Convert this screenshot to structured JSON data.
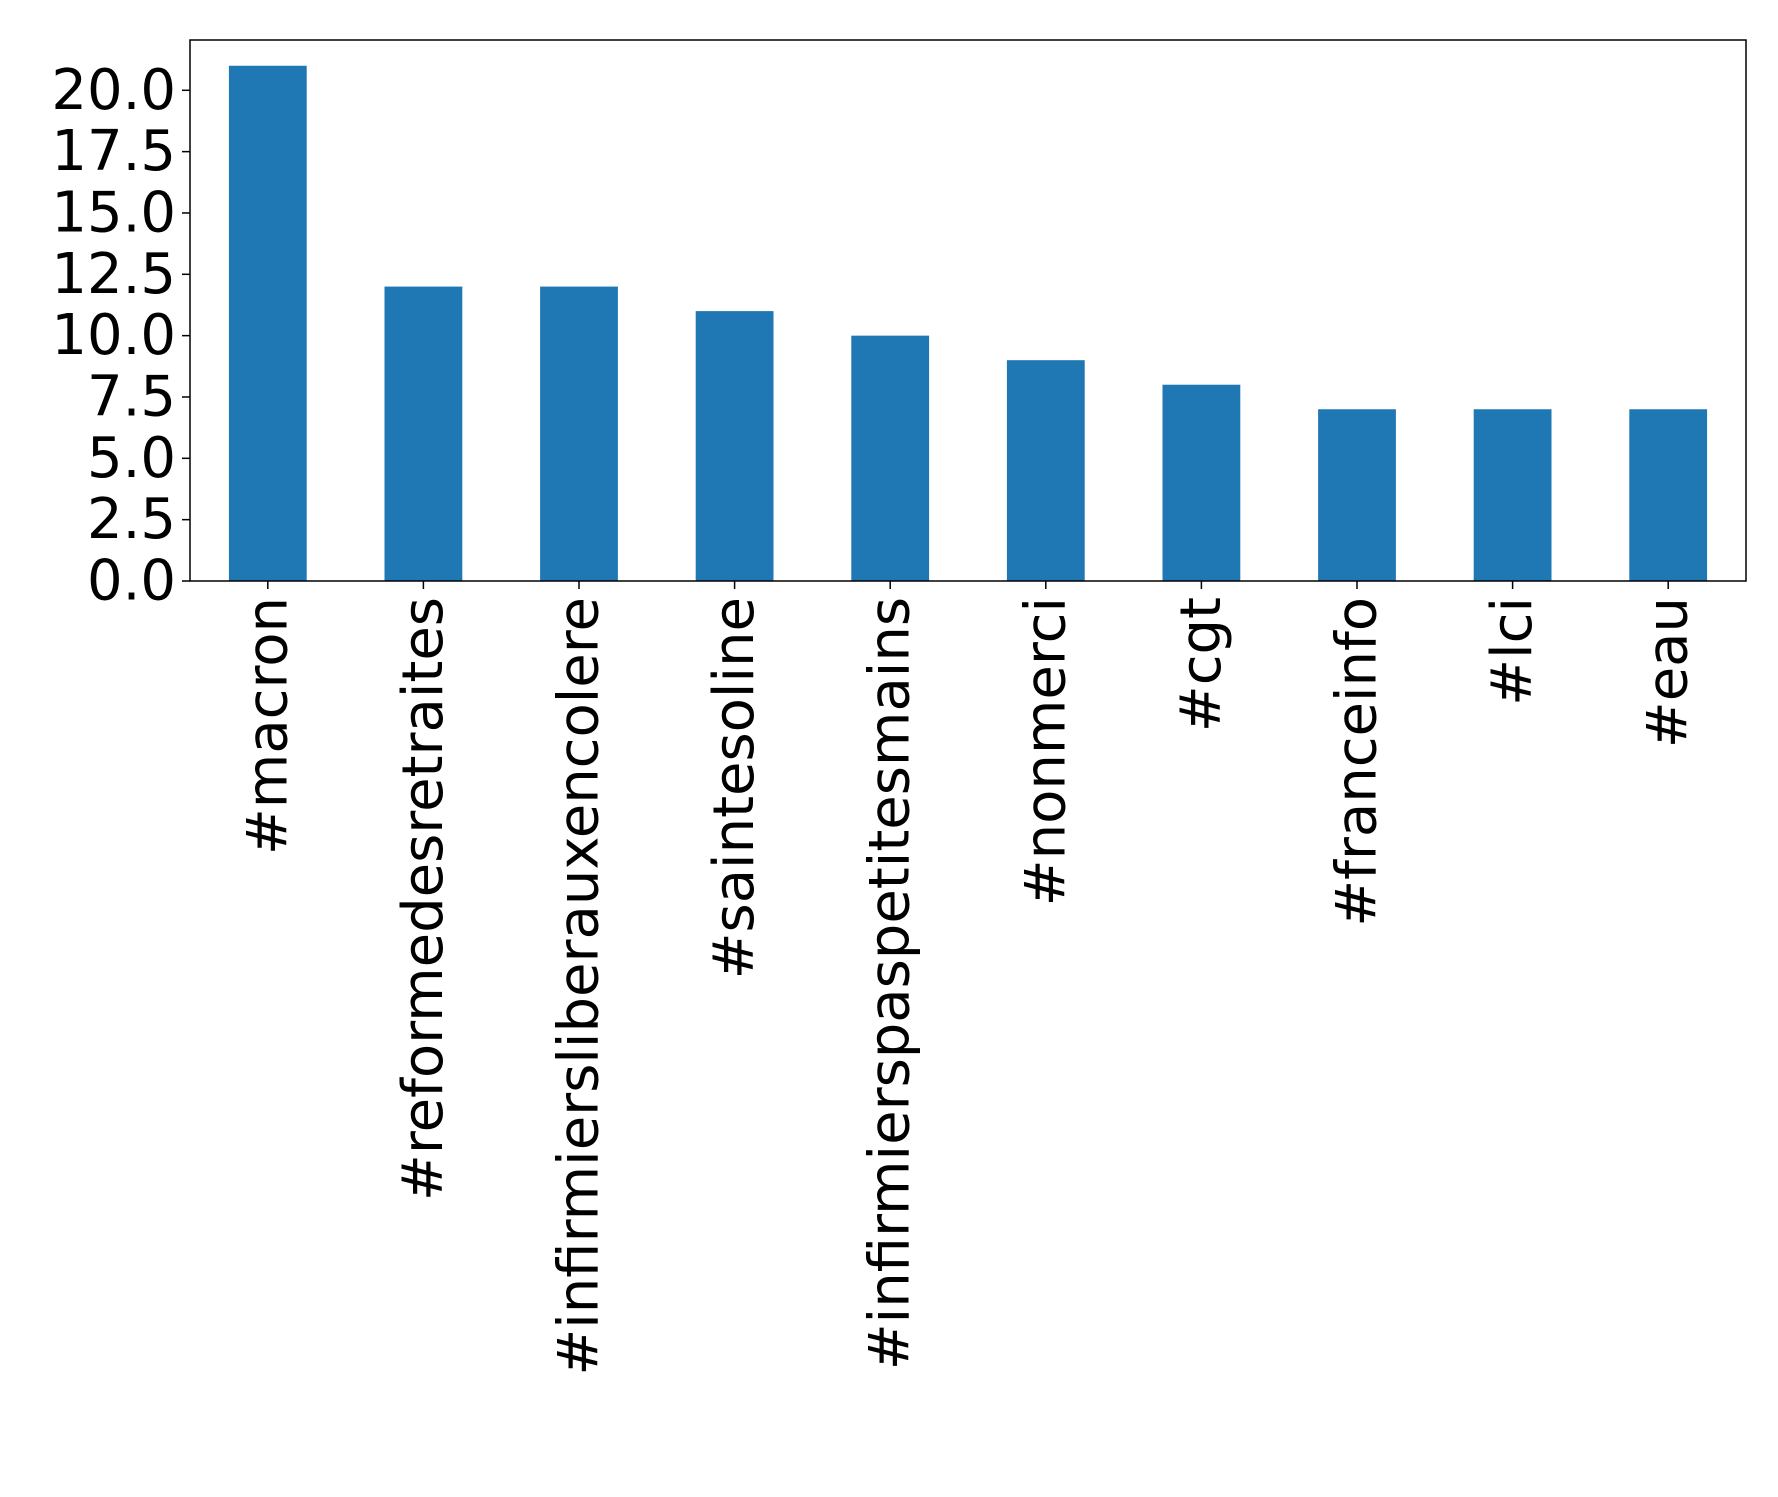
{
  "chart_data": {
    "type": "bar",
    "categories": [
      "#macron",
      "#reformedesretraites",
      "#infirmiersliberauxencolere",
      "#saintesoline",
      "#infirmierspaspetitesmains",
      "#nonmerci",
      "#cgt",
      "#franceinfo",
      "#lci",
      "#eau"
    ],
    "values": [
      21,
      12,
      12,
      11,
      10,
      9,
      8,
      7,
      7,
      7
    ],
    "title": "",
    "xlabel": "",
    "ylabel": "",
    "ylim": [
      0,
      22.05
    ],
    "yticks": [
      "0.0",
      "2.5",
      "5.0",
      "7.5",
      "10.0",
      "12.5",
      "15.0",
      "17.5",
      "20.0"
    ],
    "bar_color": "#1f77b4",
    "grid": false,
    "legend": "none"
  }
}
